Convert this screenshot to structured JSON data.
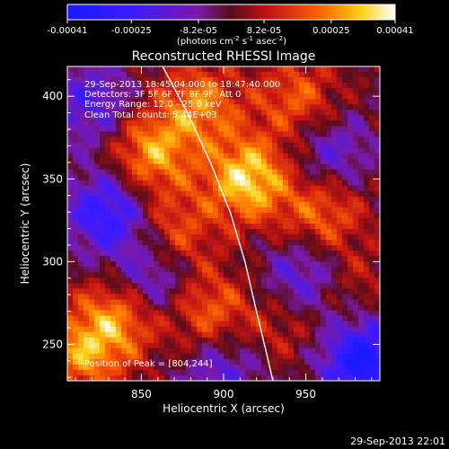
{
  "colorbar": {
    "tick_labels": [
      "-0.00041",
      "-0.00025",
      "-8.2e-05",
      "8.2e-05",
      "0.00025",
      "0.00041"
    ],
    "tick_values": [
      -0.00041,
      -0.00025,
      -8.2e-05,
      8.2e-05,
      0.00025,
      0.00041
    ],
    "range": [
      -0.00041,
      0.00041
    ],
    "units": "(photons cm",
    "units_exp1": "-2",
    "units_mid": " s",
    "units_exp2": "-1",
    "units_end": " asec",
    "units_exp3": "-2",
    "units_close": ")",
    "colormap": "RHESSI blue-purple-red-yellow-white"
  },
  "chart_data": {
    "type": "heatmap",
    "title": "Reconstructed RHESSI Image",
    "xlabel": "Heliocentric X (arcsec)",
    "ylabel": "Heliocentric Y (arcsec)",
    "xlim": [
      805,
      995
    ],
    "ylim": [
      228,
      418
    ],
    "x_ticks": [
      850,
      900,
      950
    ],
    "y_ticks": [
      250,
      300,
      350,
      400
    ],
    "info_lines": [
      "29-Sep-2013 18:45:04.000 to 18:47:40.000",
      "Detectors: 3F 5F 6F 7F 8F 9F, Att 0",
      "Energy Range: 12.0 - 25.0 keV",
      "Clean     Total counts: 5.44E+03"
    ],
    "peak_label": "Position of Peak = [804,244]",
    "peak": [
      804,
      244
    ],
    "limb_curve": [
      [
        863,
        418
      ],
      [
        878,
        390
      ],
      [
        892,
        360
      ],
      [
        904,
        330
      ],
      [
        913,
        300
      ],
      [
        920,
        270
      ],
      [
        926,
        245
      ],
      [
        930,
        228
      ]
    ],
    "hotspots": [
      {
        "x": 915,
        "y": 350,
        "value": 0.00035
      },
      {
        "x": 840,
        "y": 270,
        "value": 0.0003
      },
      {
        "x": 855,
        "y": 365,
        "value": 0.00028
      },
      {
        "x": 885,
        "y": 395,
        "value": 0.00024
      },
      {
        "x": 960,
        "y": 330,
        "value": 0.00022
      },
      {
        "x": 945,
        "y": 398,
        "value": 0.0002
      },
      {
        "x": 890,
        "y": 270,
        "value": 0.00022
      },
      {
        "x": 815,
        "y": 245,
        "value": 0.00026
      },
      {
        "x": 870,
        "y": 318,
        "value": 0.00018
      },
      {
        "x": 975,
        "y": 285,
        "value": 0.00012
      },
      {
        "x": 935,
        "y": 260,
        "value": 0.00012
      }
    ],
    "coldspots": [
      {
        "x": 830,
        "y": 330,
        "value": -0.0003
      },
      {
        "x": 985,
        "y": 240,
        "value": -0.0004
      },
      {
        "x": 855,
        "y": 285,
        "value": -0.00028
      },
      {
        "x": 965,
        "y": 365,
        "value": -0.00018
      },
      {
        "x": 950,
        "y": 290,
        "value": -0.00022
      },
      {
        "x": 820,
        "y": 395,
        "value": -0.0002
      },
      {
        "x": 900,
        "y": 235,
        "value": -0.00018
      }
    ]
  },
  "footer_timestamp": "29-Sep-2013 22:01"
}
